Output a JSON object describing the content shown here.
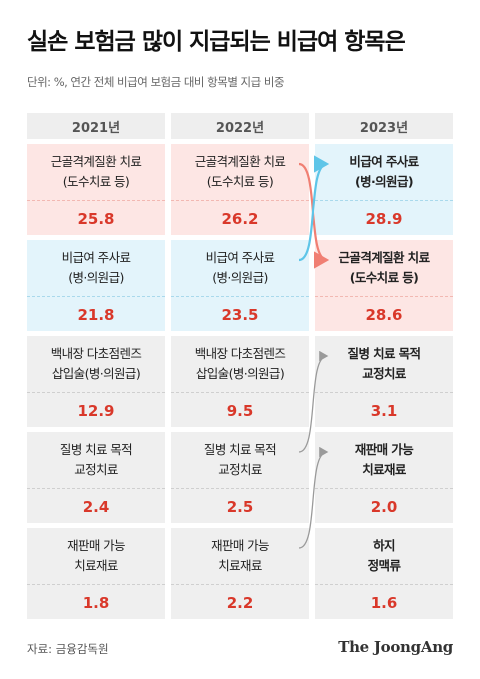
{
  "title": "실손 보험금 많이 지급되는 비급여 항목은",
  "subtitle": "단위: %, 연간 전체 비급여 보험금 대비 항목별 지급 비중",
  "source": "자료: 금융감독원",
  "logo": "The JoongAng",
  "colors": {
    "value_red": "#d9382a",
    "pink_bg": "#fde6e4",
    "blue_bg": "#e3f4fb",
    "gray_bg": "#efefef",
    "pink_arrow": "#f07f73",
    "blue_arrow": "#5ec5e8",
    "gray_arrow": "#9a9a9a"
  },
  "chart_data": {
    "type": "table",
    "unit": "%",
    "years": [
      "2021년",
      "2022년",
      "2023년"
    ],
    "columns": [
      {
        "year": "2021년",
        "items": [
          {
            "line1": "근골격계질환 치료",
            "line2": "(도수치료 등)",
            "value_text": "25.8",
            "value": 25.8,
            "category": "pink"
          },
          {
            "line1": "비급여 주사료",
            "line2": "(병·의원급)",
            "value_text": "21.8",
            "value": 21.8,
            "category": "blue"
          },
          {
            "line1": "백내장 다초점렌즈",
            "line2": "삽입술(병·의원급)",
            "value_text": "12.9",
            "value": 12.9,
            "category": "gray"
          },
          {
            "line1": "질병 치료 목적",
            "line2": "교정치료",
            "value_text": "2.4",
            "value": 2.4,
            "category": "gray"
          },
          {
            "line1": "재판매 가능",
            "line2": "치료재료",
            "value_text": "1.8",
            "value": 1.8,
            "category": "gray"
          }
        ]
      },
      {
        "year": "2022년",
        "items": [
          {
            "line1": "근골격계질환 치료",
            "line2": "(도수치료 등)",
            "value_text": "26.2",
            "value": 26.2,
            "category": "pink"
          },
          {
            "line1": "비급여 주사료",
            "line2": "(병·의원급)",
            "value_text": "23.5",
            "value": 23.5,
            "category": "blue"
          },
          {
            "line1": "백내장 다초점렌즈",
            "line2": "삽입술(병·의원급)",
            "value_text": "9.5",
            "value": 9.5,
            "category": "gray"
          },
          {
            "line1": "질병 치료 목적",
            "line2": "교정치료",
            "value_text": "2.5",
            "value": 2.5,
            "category": "gray"
          },
          {
            "line1": "재판매 가능",
            "line2": "치료재료",
            "value_text": "2.2",
            "value": 2.2,
            "category": "gray"
          }
        ]
      },
      {
        "year": "2023년",
        "items": [
          {
            "line1": "비급여 주사료",
            "line2": "(병·의원급)",
            "value_text": "28.9",
            "value": 28.9,
            "category": "blue",
            "bold": true
          },
          {
            "line1": "근골격계질환 치료",
            "line2": "(도수치료 등)",
            "value_text": "28.6",
            "value": 28.6,
            "category": "pink",
            "bold": true
          },
          {
            "line1": "질병 치료 목적",
            "line2": "교정치료",
            "value_text": "3.1",
            "value": 3.1,
            "category": "gray",
            "bold": true
          },
          {
            "line1": "재판매 가능",
            "line2": "치료재료",
            "value_text": "2.0",
            "value": 2.0,
            "category": "gray",
            "bold": true
          },
          {
            "line1": "하지",
            "line2": "정맥류",
            "value_text": "1.6",
            "value": 1.6,
            "category": "gray",
            "bold": true
          }
        ]
      }
    ],
    "rank_changes_2022_to_2023": [
      {
        "item": "근골격계질환 치료",
        "from_rank": 1,
        "to_rank": 2,
        "color": "pink"
      },
      {
        "item": "비급여 주사료",
        "from_rank": 2,
        "to_rank": 1,
        "color": "blue"
      },
      {
        "item": "질병 치료 목적 교정치료",
        "from_rank": 4,
        "to_rank": 3,
        "color": "gray"
      },
      {
        "item": "재판매 가능 치료재료",
        "from_rank": 5,
        "to_rank": 4,
        "color": "gray"
      }
    ]
  }
}
